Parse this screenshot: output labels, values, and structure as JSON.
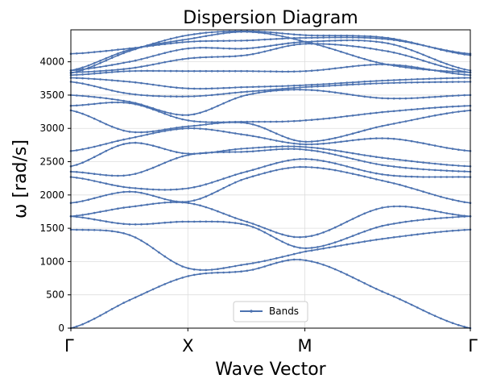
{
  "chart_data": {
    "type": "line",
    "title": "Dispersion Diagram",
    "xlabel": "Wave Vector",
    "ylabel": "ω [rad/s]",
    "x_ticks": [
      "Γ",
      "X",
      "M",
      "Γ"
    ],
    "x_tick_positions": [
      0,
      1,
      2,
      3.414
    ],
    "xlim": [
      0,
      3.414
    ],
    "ylim": [
      0,
      4480
    ],
    "y_ticks": [
      0,
      500,
      1000,
      1500,
      2000,
      2500,
      3000,
      3500,
      4000
    ],
    "grid": true,
    "legend": {
      "label": "Bands",
      "placement": "lower-center"
    },
    "series_color": "#4c72b0",
    "bands": [
      {
        "name": "band-1",
        "values": [
          [
            0,
            0
          ],
          [
            0.5,
            420
          ],
          [
            1,
            780
          ],
          [
            1.5,
            860
          ],
          [
            2,
            1020
          ],
          [
            2.7,
            520
          ],
          [
            3.414,
            0
          ]
        ]
      },
      {
        "name": "band-2",
        "values": [
          [
            0,
            1480
          ],
          [
            0.5,
            1400
          ],
          [
            1,
            900
          ],
          [
            1.5,
            960
          ],
          [
            2,
            1150
          ],
          [
            2.7,
            1350
          ],
          [
            3.414,
            1480
          ]
        ]
      },
      {
        "name": "band-3",
        "values": [
          [
            0,
            1680
          ],
          [
            0.5,
            1560
          ],
          [
            1,
            1600
          ],
          [
            1.5,
            1550
          ],
          [
            2,
            1200
          ],
          [
            2.7,
            1550
          ],
          [
            3.414,
            1680
          ]
        ]
      },
      {
        "name": "band-4",
        "values": [
          [
            0,
            1680
          ],
          [
            0.5,
            1820
          ],
          [
            1,
            1880
          ],
          [
            1.5,
            1600
          ],
          [
            2,
            1370
          ],
          [
            2.7,
            1820
          ],
          [
            3.414,
            1680
          ]
        ]
      },
      {
        "name": "band-5",
        "values": [
          [
            0,
            1880
          ],
          [
            0.5,
            2050
          ],
          [
            1,
            1900
          ],
          [
            1.5,
            2250
          ],
          [
            2,
            2420
          ],
          [
            2.7,
            2200
          ],
          [
            3.414,
            1880
          ]
        ]
      },
      {
        "name": "band-6",
        "values": [
          [
            0,
            2270
          ],
          [
            0.5,
            2110
          ],
          [
            1,
            2100
          ],
          [
            1.5,
            2350
          ],
          [
            2,
            2540
          ],
          [
            2.7,
            2300
          ],
          [
            3.414,
            2270
          ]
        ]
      },
      {
        "name": "band-7",
        "values": [
          [
            0,
            2350
          ],
          [
            0.5,
            2300
          ],
          [
            1,
            2600
          ],
          [
            1.5,
            2650
          ],
          [
            2,
            2680
          ],
          [
            2.7,
            2440
          ],
          [
            3.414,
            2350
          ]
        ]
      },
      {
        "name": "band-8",
        "values": [
          [
            0,
            2430
          ],
          [
            0.5,
            2780
          ],
          [
            1,
            2620
          ],
          [
            1.5,
            2700
          ],
          [
            2,
            2720
          ],
          [
            2.7,
            2550
          ],
          [
            3.414,
            2430
          ]
        ]
      },
      {
        "name": "band-9",
        "values": [
          [
            0,
            2660
          ],
          [
            0.5,
            2850
          ],
          [
            1,
            3000
          ],
          [
            1.5,
            2900
          ],
          [
            2,
            2760
          ],
          [
            2.7,
            2850
          ],
          [
            3.414,
            2660
          ]
        ]
      },
      {
        "name": "band-10",
        "values": [
          [
            0,
            3270
          ],
          [
            0.5,
            2950
          ],
          [
            1,
            3030
          ],
          [
            1.5,
            3080
          ],
          [
            2,
            2800
          ],
          [
            2.7,
            3050
          ],
          [
            3.414,
            3270
          ]
        ]
      },
      {
        "name": "band-11",
        "values": [
          [
            0,
            3340
          ],
          [
            0.5,
            3380
          ],
          [
            1,
            3120
          ],
          [
            1.5,
            3100
          ],
          [
            2,
            3120
          ],
          [
            2.7,
            3250
          ],
          [
            3.414,
            3340
          ]
        ]
      },
      {
        "name": "band-12",
        "values": [
          [
            0,
            3500
          ],
          [
            0.5,
            3400
          ],
          [
            1,
            3200
          ],
          [
            1.5,
            3500
          ],
          [
            2,
            3580
          ],
          [
            2.7,
            3450
          ],
          [
            3.414,
            3500
          ]
        ]
      },
      {
        "name": "band-13",
        "values": [
          [
            0,
            3700
          ],
          [
            0.5,
            3520
          ],
          [
            1,
            3480
          ],
          [
            1.5,
            3550
          ],
          [
            2,
            3620
          ],
          [
            2.7,
            3680
          ],
          [
            3.414,
            3700
          ]
        ]
      },
      {
        "name": "band-14",
        "values": [
          [
            0,
            3760
          ],
          [
            0.5,
            3700
          ],
          [
            1,
            3600
          ],
          [
            1.5,
            3620
          ],
          [
            2,
            3650
          ],
          [
            2.7,
            3720
          ],
          [
            3.414,
            3760
          ]
        ]
      },
      {
        "name": "band-15",
        "values": [
          [
            0,
            3800
          ],
          [
            0.5,
            3860
          ],
          [
            1,
            3860
          ],
          [
            1.5,
            3860
          ],
          [
            2,
            3860
          ],
          [
            2.7,
            3960
          ],
          [
            3.414,
            3800
          ]
        ]
      },
      {
        "name": "band-16",
        "values": [
          [
            0,
            3840
          ],
          [
            0.5,
            3900
          ],
          [
            1,
            4050
          ],
          [
            1.5,
            4100
          ],
          [
            2,
            4270
          ],
          [
            2.7,
            4160
          ],
          [
            3.414,
            3840
          ]
        ]
      },
      {
        "name": "band-17",
        "values": [
          [
            0,
            3870
          ],
          [
            0.5,
            4000
          ],
          [
            1,
            4200
          ],
          [
            1.5,
            4200
          ],
          [
            2,
            4300
          ],
          [
            2.7,
            4280
          ],
          [
            3.414,
            3870
          ]
        ]
      },
      {
        "name": "band-18",
        "values": [
          [
            0,
            4120
          ],
          [
            0.5,
            4200
          ],
          [
            1,
            4300
          ],
          [
            1.5,
            4320
          ],
          [
            2,
            4360
          ],
          [
            2.7,
            4340
          ],
          [
            3.414,
            4120
          ]
        ]
      },
      {
        "name": "band-19",
        "values": [
          [
            0,
            3830
          ],
          [
            0.5,
            4160
          ],
          [
            1,
            4400
          ],
          [
            1.5,
            4460
          ],
          [
            2,
            4400
          ],
          [
            2.7,
            4360
          ],
          [
            3.414,
            4100
          ]
        ]
      },
      {
        "name": "band-20",
        "values": [
          [
            0,
            3870
          ],
          [
            0.5,
            4180
          ],
          [
            1,
            4340
          ],
          [
            1.5,
            4450
          ],
          [
            2,
            4300
          ],
          [
            2.7,
            3960
          ],
          [
            3.414,
            3840
          ]
        ]
      }
    ]
  }
}
